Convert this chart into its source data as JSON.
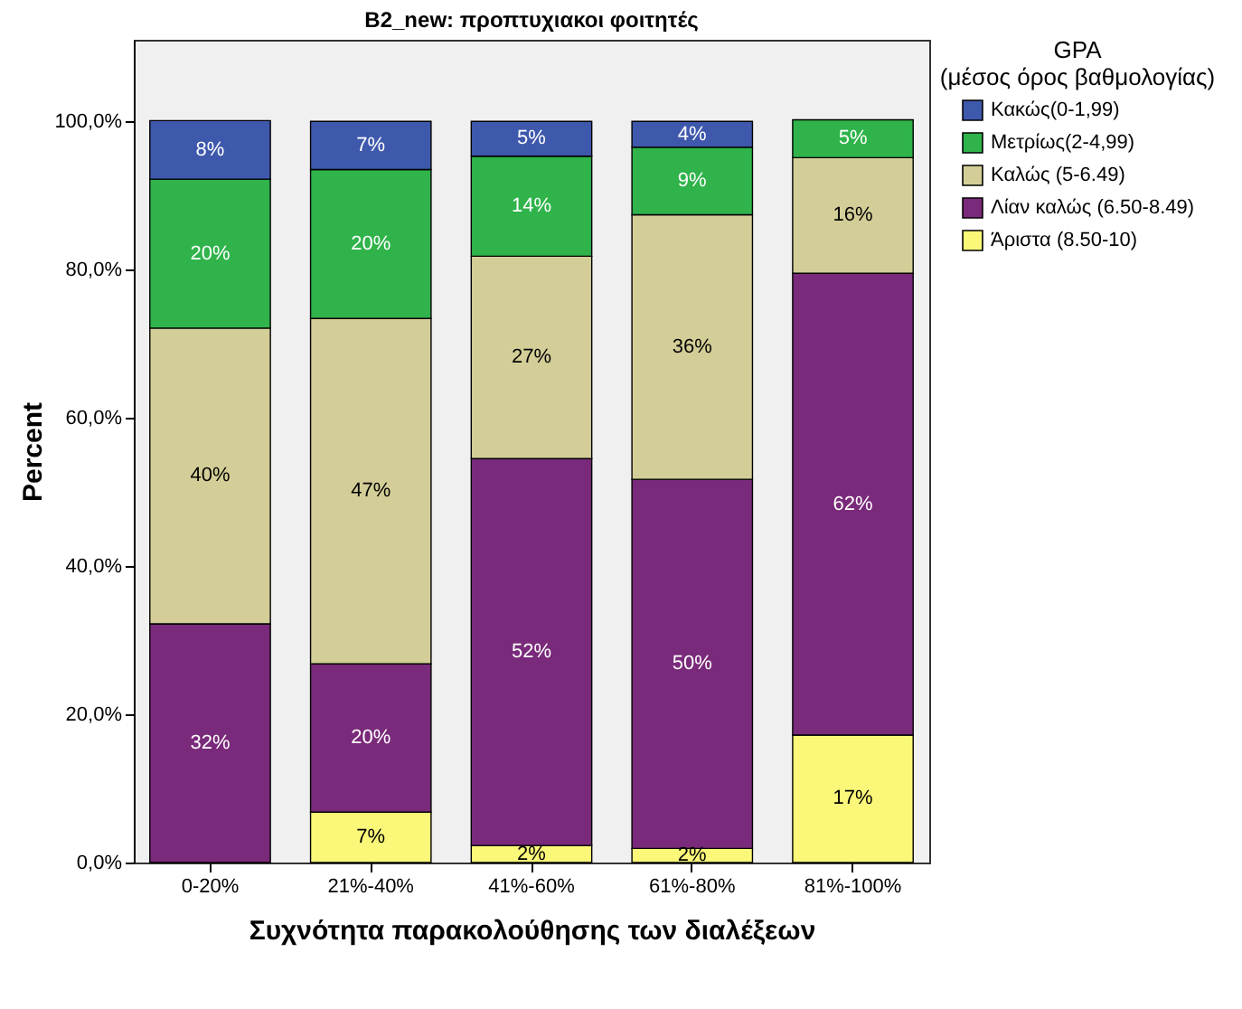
{
  "chart_data": {
    "type": "bar",
    "stacked": true,
    "title": "B2_new: προπτυχιακοι φοιτητές",
    "xlabel": "Συχνότητα παρακολούθησης των διαλέξεων",
    "ylabel": "Percent",
    "legend_title": "GPA (μέσος όρος βαθμολογίας)",
    "legend": "right",
    "categories": [
      "0-20%",
      "21%-40%",
      "41%-60%",
      "61%-80%",
      "81%-100%"
    ],
    "series": [
      {
        "name": "Άριστα (8.50-10)",
        "color": "#fbf879",
        "values": [
          null,
          6.8,
          2.3,
          1.9,
          17.2
        ],
        "value_labels": [
          null,
          "7%",
          "2%",
          "2%",
          "17%"
        ]
      },
      {
        "name": "Λίαν καλώς (6.50-8.49)",
        "color": "#7a2a7a",
        "values": [
          32.2,
          20.0,
          52.2,
          49.8,
          62.3
        ],
        "value_labels": [
          "32%",
          "20%",
          "52%",
          "50%",
          "62%"
        ]
      },
      {
        "name": "Καλώς (5-6.49)",
        "color": "#d3ce97",
        "values": [
          39.9,
          46.6,
          27.3,
          35.7,
          15.6
        ],
        "value_labels": [
          "40%",
          "47%",
          "27%",
          "36%",
          "16%"
        ]
      },
      {
        "name": "Μετρίως(2-4,99)",
        "color": "#2fb34a",
        "values": [
          20.1,
          20.1,
          13.5,
          9.1,
          5.1
        ],
        "value_labels": [
          "20%",
          "20%",
          "14%",
          "9%",
          "5%"
        ]
      },
      {
        "name": "Κακώς(0-1,99)",
        "color": "#3e58ac",
        "values": [
          7.9,
          6.5,
          4.7,
          3.5,
          null
        ],
        "value_labels": [
          "8%",
          "7%",
          "5%",
          "4%",
          null
        ]
      }
    ],
    "ylim": [
      0,
      111
    ],
    "yticks": [
      {
        "value": 0,
        "label": "0,0%"
      },
      {
        "value": 20,
        "label": "20,0%"
      },
      {
        "value": 40,
        "label": "40,0%"
      },
      {
        "value": 60,
        "label": "60,0%"
      },
      {
        "value": 80,
        "label": "80,0%"
      },
      {
        "value": 100,
        "label": "100,0%"
      }
    ],
    "grid": false
  }
}
